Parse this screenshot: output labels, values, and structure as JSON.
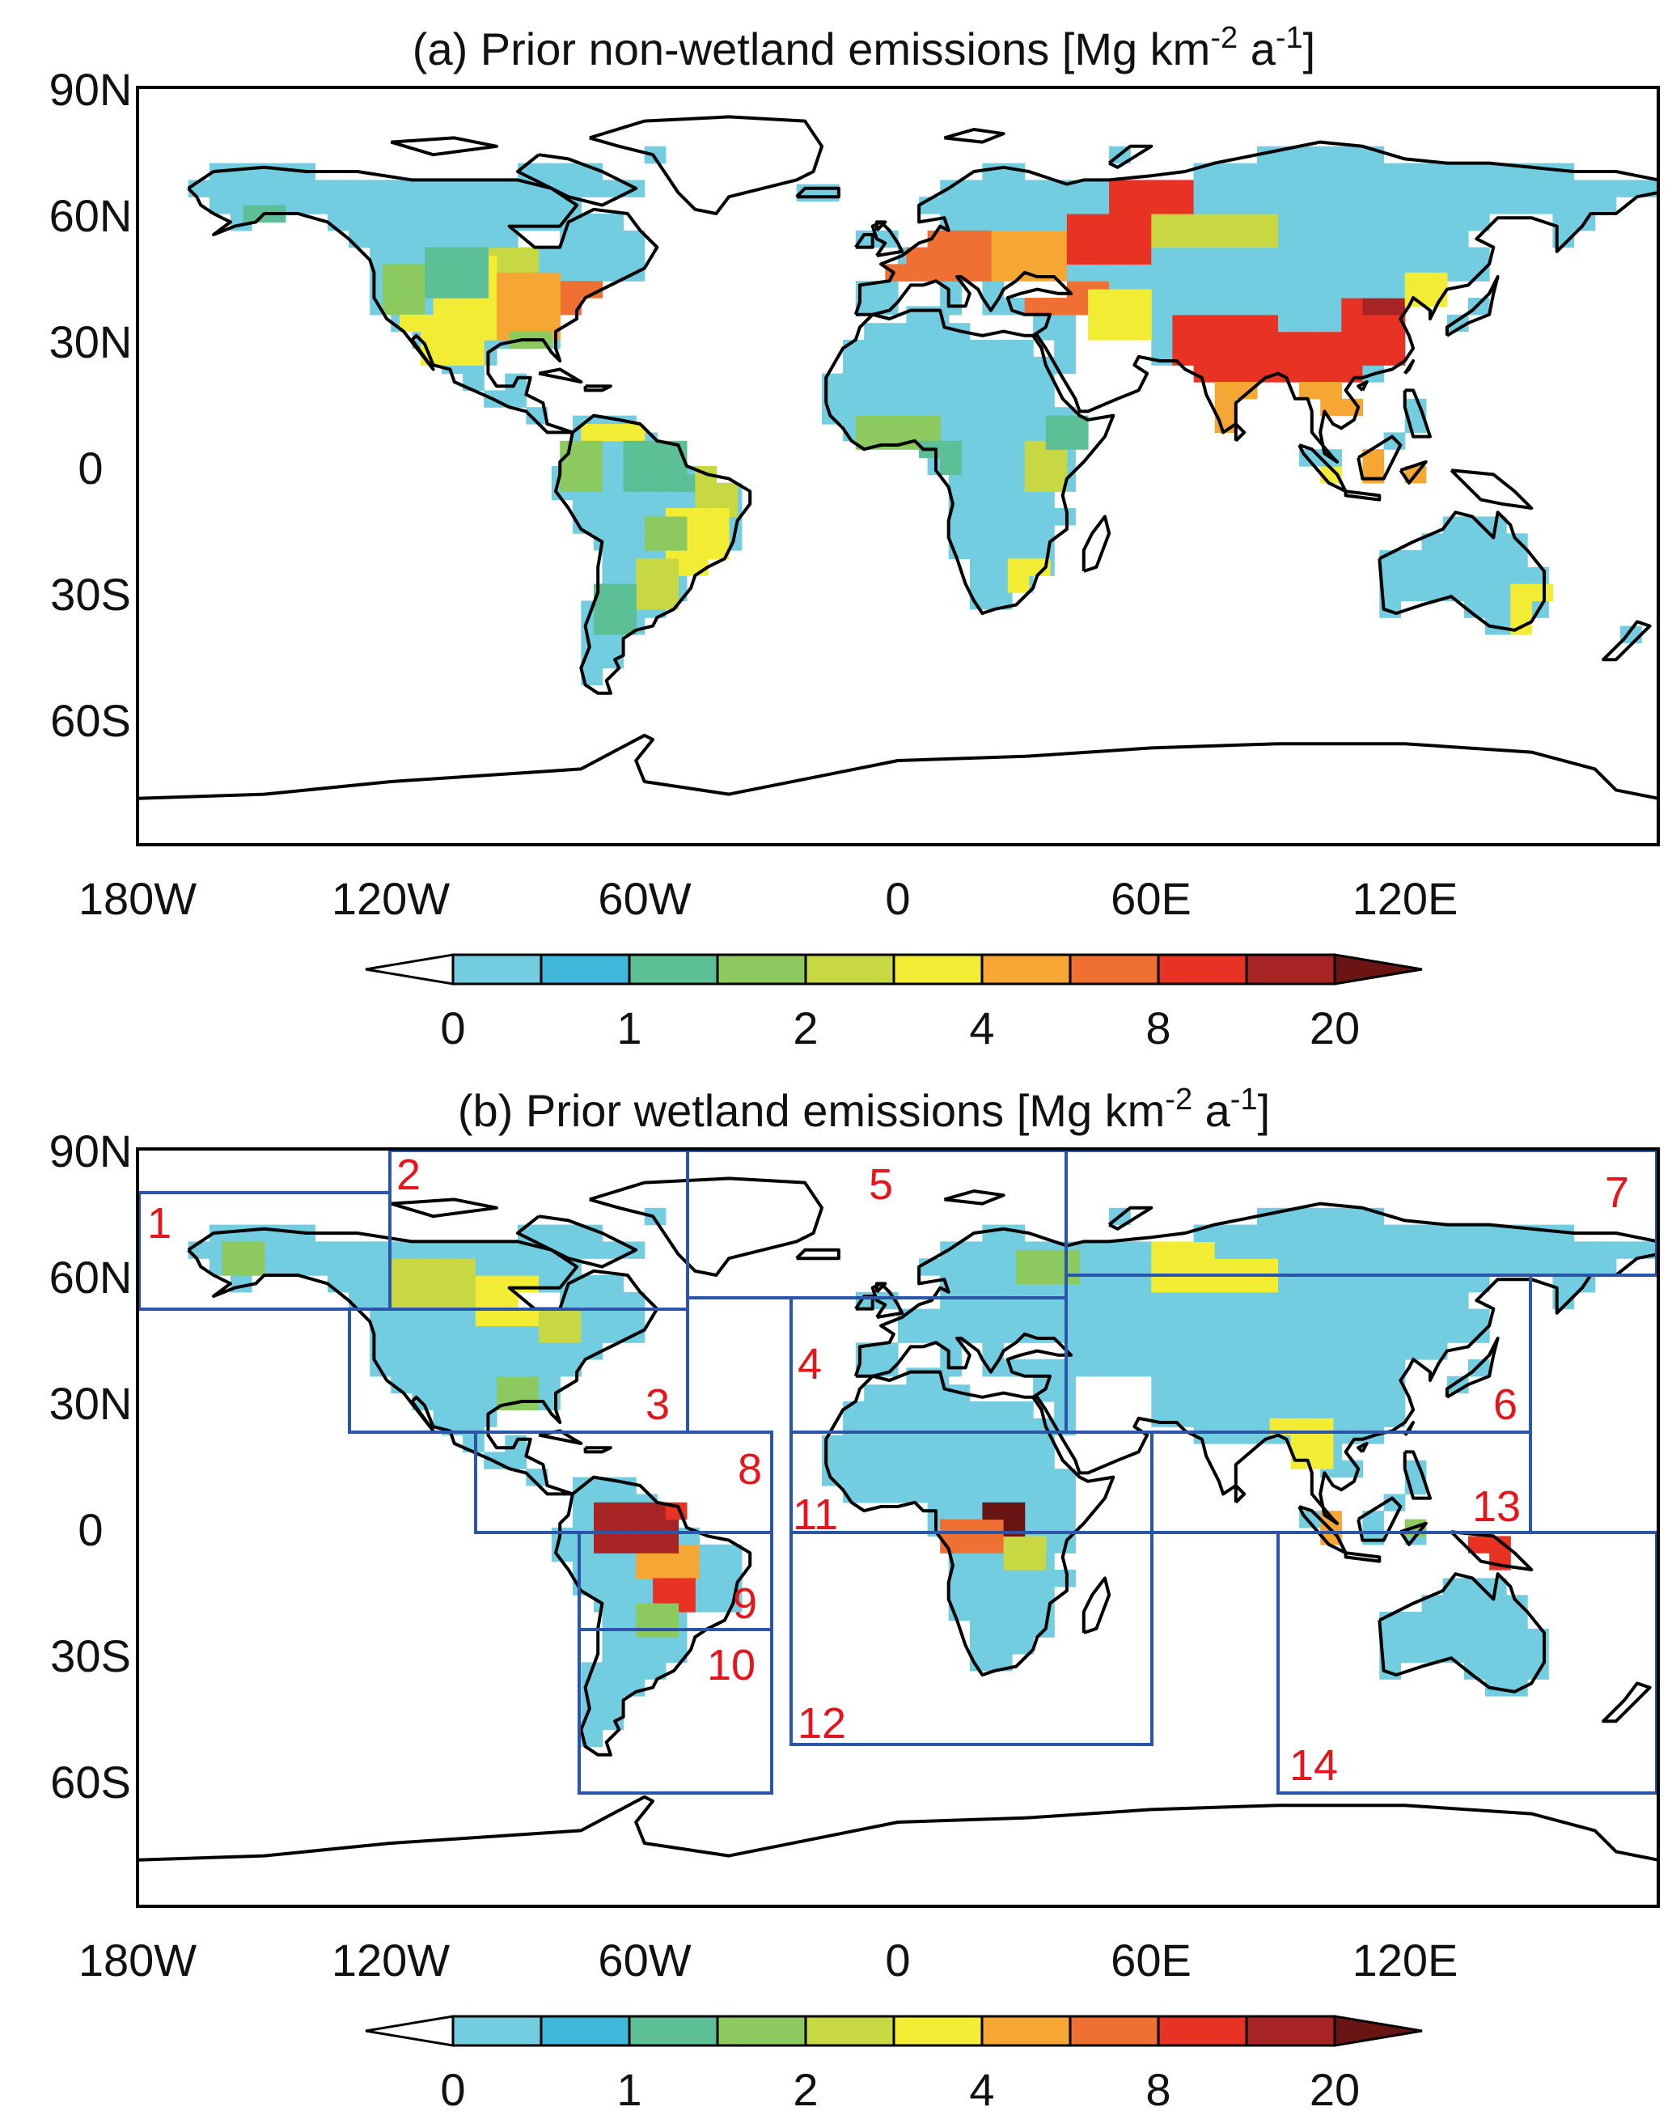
{
  "panels": [
    {
      "id": "a",
      "title_main": "(a) Prior non-wetland emissions [Mg km",
      "title_sup1": "-2",
      "title_mid": " a",
      "title_sup2": "-1",
      "title_end": "]"
    },
    {
      "id": "b",
      "title_main": "(b) Prior wetland emissions [Mg km",
      "title_sup1": "-2",
      "title_mid": "  a",
      "title_sup2": "-1",
      "title_end": "]"
    }
  ],
  "lat_ticks": [
    "90N",
    "60N",
    "30N",
    "0",
    "30S",
    "60S"
  ],
  "lon_ticks": [
    "180W",
    "120W",
    "60W",
    "0",
    "60E",
    "120E"
  ],
  "colorbar": {
    "labels": [
      "0",
      "1",
      "2",
      "4",
      "8",
      "20"
    ],
    "colors": [
      "#ffffff",
      "#72cde0",
      "#3fb8dc",
      "#5cbf96",
      "#8cc95e",
      "#c7d843",
      "#f3ec35",
      "#f6a633",
      "#f07033",
      "#e83324",
      "#a82324",
      "#6b1414"
    ]
  },
  "region_labels": [
    "1",
    "2",
    "3",
    "4",
    "5",
    "6",
    "7",
    "8",
    "9",
    "10",
    "11",
    "12",
    "13",
    "14"
  ],
  "colors": {
    "box_blue": "#2a55a8",
    "label_red": "#e8141b",
    "ocean": "#ffffff",
    "coast": "#000000"
  }
}
